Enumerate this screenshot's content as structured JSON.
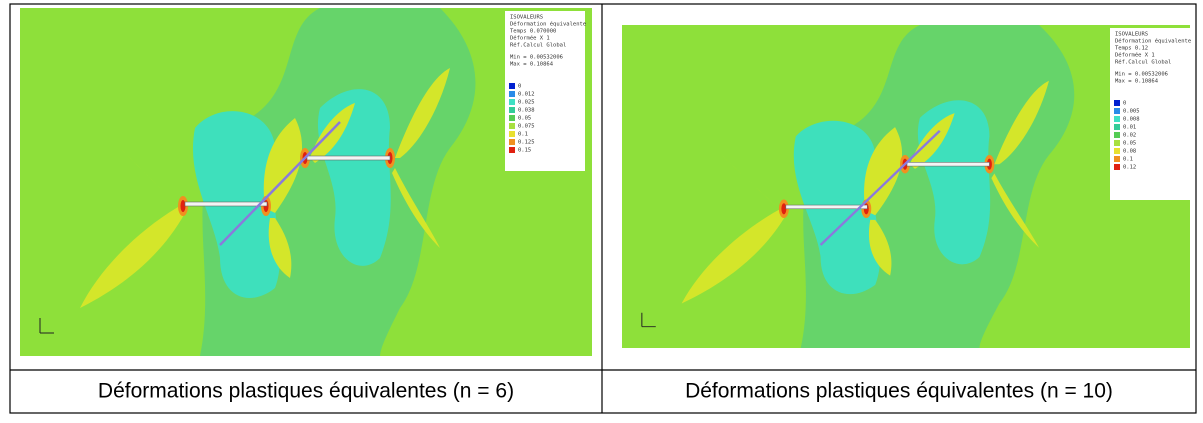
{
  "cells": [
    {
      "plot": {
        "header": [
          "ISOVALEURS",
          "Déformation équivalente",
          "Temps 0.070000",
          "Déformée X 1",
          "Réf.Calcul Global",
          "Min = 0.00532006",
          "Max = 0.10864"
        ],
        "legend": [
          "0",
          "0.012",
          "0.025",
          "0.038",
          "0.05",
          "0.075",
          "0.1",
          "0.125",
          "0.15"
        ]
      },
      "caption": "Déformations plastiques équivalentes (n = 6)"
    },
    {
      "plot": {
        "header": [
          "ISOVALEURS",
          "Déformation équivalente",
          "Temps 0.12",
          "Déformée X 1",
          "Réf.Calcul Global",
          "Min = 0.00532006",
          "Max = 0.10864"
        ],
        "legend": [
          "0",
          "0.005",
          "0.008",
          "0.01",
          "0.02",
          "0.05",
          "0.08",
          "0.1",
          "0.12"
        ]
      },
      "caption": "Déformations plastiques équivalentes (n = 10)"
    }
  ]
}
